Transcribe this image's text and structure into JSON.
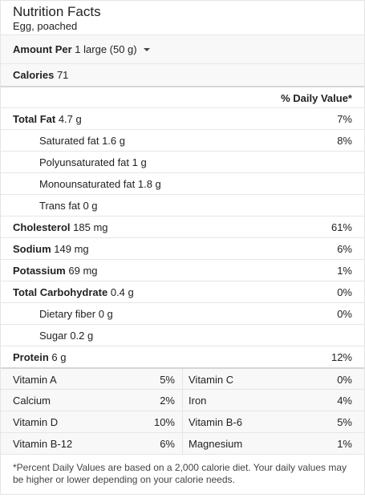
{
  "header": {
    "title": "Nutrition Facts",
    "subtitle": "Egg, poached"
  },
  "amount": {
    "label": "Amount Per",
    "value": "1 large (50 g)"
  },
  "calories": {
    "label": "Calories",
    "value": "71"
  },
  "dv_header": "% Daily Value*",
  "nutrients": [
    {
      "label": "Total Fat",
      "value": "4.7 g",
      "pct": "7%"
    },
    {
      "label": "Saturated fat",
      "value": "1.6 g",
      "pct": "8%"
    },
    {
      "label": "Polyunsaturated fat",
      "value": "1 g",
      "pct": ""
    },
    {
      "label": "Monounsaturated fat",
      "value": "1.8 g",
      "pct": ""
    },
    {
      "label": "Trans fat",
      "value": "0 g",
      "pct": ""
    },
    {
      "label": "Cholesterol",
      "value": "185 mg",
      "pct": "61%"
    },
    {
      "label": "Sodium",
      "value": "149 mg",
      "pct": "6%"
    },
    {
      "label": "Potassium",
      "value": "69 mg",
      "pct": "1%"
    },
    {
      "label": "Total Carbohydrate",
      "value": "0.4 g",
      "pct": "0%"
    },
    {
      "label": "Dietary fiber",
      "value": "0 g",
      "pct": "0%"
    },
    {
      "label": "Sugar",
      "value": "0.2 g",
      "pct": ""
    },
    {
      "label": "Protein",
      "value": "6 g",
      "pct": "12%"
    }
  ],
  "vitamins": [
    {
      "left_name": "Vitamin A",
      "left_pct": "5%",
      "right_name": "Vitamin C",
      "right_pct": "0%"
    },
    {
      "left_name": "Calcium",
      "left_pct": "2%",
      "right_name": "Iron",
      "right_pct": "4%"
    },
    {
      "left_name": "Vitamin D",
      "left_pct": "10%",
      "right_name": "Vitamin B-6",
      "right_pct": "5%"
    },
    {
      "left_name": "Vitamin B-12",
      "left_pct": "6%",
      "right_name": "Magnesium",
      "right_pct": "1%"
    }
  ],
  "footer": "*Percent Daily Values are based on a 2,000 calorie diet. Your daily values may be higher or lower depending on your calorie needs."
}
